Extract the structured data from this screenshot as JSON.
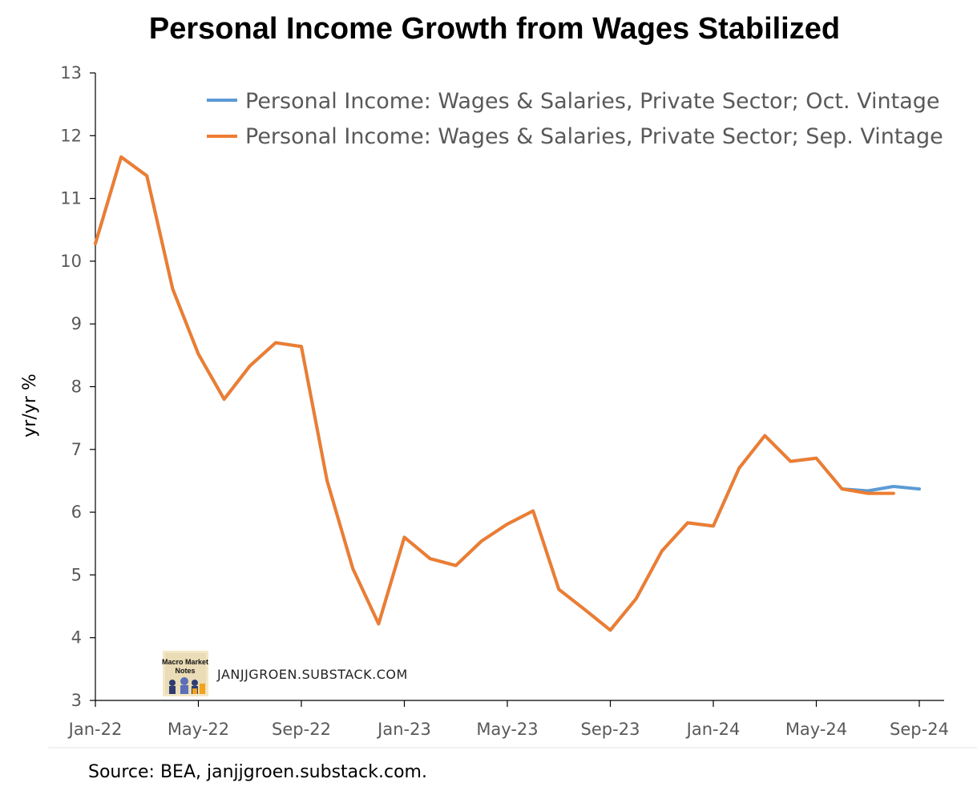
{
  "chart_data": {
    "type": "line",
    "title": "Personal Income Growth from Wages Stabilized",
    "xlabel": "",
    "ylabel": "yr/yr %",
    "ylim": [
      3,
      13
    ],
    "yticks": [
      "3",
      "4",
      "5",
      "6",
      "7",
      "8",
      "9",
      "10",
      "11",
      "12",
      "13"
    ],
    "x_tick_labels": [
      "Jan-22",
      "May-22",
      "Sep-22",
      "Jan-23",
      "May-23",
      "Sep-23",
      "Jan-24",
      "May-24",
      "Sep-24"
    ],
    "x": [
      "Jan-22",
      "Feb-22",
      "Mar-22",
      "Apr-22",
      "May-22",
      "Jun-22",
      "Jul-22",
      "Aug-22",
      "Sep-22",
      "Oct-22",
      "Nov-22",
      "Dec-22",
      "Jan-23",
      "Feb-23",
      "Mar-23",
      "Apr-23",
      "May-23",
      "Jun-23",
      "Jul-23",
      "Aug-23",
      "Sep-23",
      "Oct-23",
      "Nov-23",
      "Dec-23",
      "Jan-24",
      "Feb-24",
      "Mar-24",
      "Apr-24",
      "May-24",
      "Jun-24",
      "Jul-24",
      "Aug-24",
      "Sep-24"
    ],
    "legend_position": "top-right",
    "grid": false,
    "series": [
      {
        "name": "Personal Income: Wages & Salaries, Private Sector; Oct. Vintage",
        "color": "#5B9BD5",
        "values": [
          10.28,
          11.66,
          11.36,
          9.56,
          8.52,
          7.8,
          8.33,
          8.7,
          8.64,
          6.5,
          5.1,
          4.22,
          5.6,
          5.26,
          5.15,
          5.54,
          5.81,
          6.02,
          4.77,
          4.45,
          4.12,
          4.62,
          5.38,
          5.83,
          5.78,
          6.7,
          7.22,
          6.81,
          6.86,
          6.37,
          6.34,
          6.41,
          6.37
        ]
      },
      {
        "name": "Personal Income: Wages & Salaries, Private Sector; Sep. Vintage",
        "color": "#ED7D31",
        "values": [
          10.28,
          11.66,
          11.36,
          9.56,
          8.52,
          7.8,
          8.33,
          8.7,
          8.64,
          6.5,
          5.1,
          4.22,
          5.6,
          5.26,
          5.15,
          5.54,
          5.81,
          6.02,
          4.77,
          4.45,
          4.12,
          4.62,
          5.38,
          5.83,
          5.78,
          6.7,
          7.22,
          6.81,
          6.86,
          6.37,
          6.3,
          6.3,
          null
        ]
      }
    ]
  },
  "watermark": {
    "brand_text": "JANJJGROEN.SUBSTACK.COM",
    "logo_text_line1": "Macro Market",
    "logo_text_line2": "Notes"
  },
  "source_note": "Source: BEA, janjjgroen.substack.com."
}
